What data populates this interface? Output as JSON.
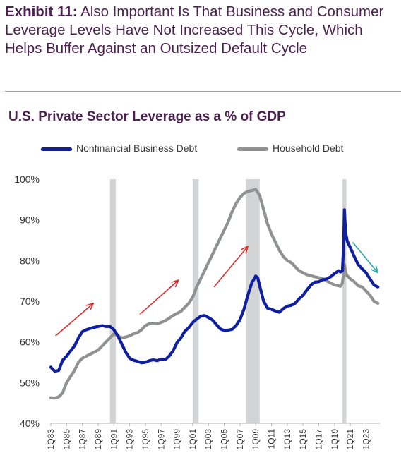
{
  "header": {
    "exhibit_label": "Exhibit 11:",
    "exhibit_text": "Also Important Is That Business and Consumer Leverage Levels Have Not Increased This Cycle, Which Helps Buffer Against an Outsized Default Cycle"
  },
  "chart_data": {
    "type": "line",
    "title": "U.S. Private Sector Leverage as a % of GDP",
    "xlabel": "",
    "ylabel": "",
    "ylim": [
      40,
      100
    ],
    "xlim": [
      1983.0,
      2024.75
    ],
    "y_ticks": [
      "40%",
      "50%",
      "60%",
      "70%",
      "80%",
      "90%",
      "100%"
    ],
    "x_ticks": [
      "1Q83",
      "1Q85",
      "1Q87",
      "1Q89",
      "1Q91",
      "1Q93",
      "1Q95",
      "1Q97",
      "1Q99",
      "1Q01",
      "1Q03",
      "1Q05",
      "1Q07",
      "1Q09",
      "1Q11",
      "1Q13",
      "1Q15",
      "1Q17",
      "1Q19",
      "1Q21",
      "1Q23"
    ],
    "legend_position": "top",
    "grid": false,
    "recessions": [
      [
        1990.5,
        1991.25
      ],
      [
        2001.0,
        2001.75
      ],
      [
        2007.75,
        2009.5
      ],
      [
        2020.0,
        2020.5
      ]
    ],
    "series": [
      {
        "name": "Nonfinancial Business Debt",
        "color": "#0f1f9e",
        "points": [
          [
            1983.0,
            53.8
          ],
          [
            1983.5,
            52.8
          ],
          [
            1984.0,
            53.0
          ],
          [
            1984.5,
            55.5
          ],
          [
            1985.0,
            56.5
          ],
          [
            1985.5,
            57.8
          ],
          [
            1986.0,
            59.0
          ],
          [
            1986.5,
            61.0
          ],
          [
            1987.0,
            62.5
          ],
          [
            1987.5,
            63.0
          ],
          [
            1988.0,
            63.3
          ],
          [
            1988.5,
            63.6
          ],
          [
            1989.0,
            63.8
          ],
          [
            1989.5,
            64.0
          ],
          [
            1990.0,
            63.8
          ],
          [
            1990.5,
            63.8
          ],
          [
            1991.0,
            63.0
          ],
          [
            1991.5,
            61.5
          ],
          [
            1992.0,
            59.5
          ],
          [
            1992.5,
            57.5
          ],
          [
            1993.0,
            56.0
          ],
          [
            1993.5,
            55.5
          ],
          [
            1994.0,
            55.2
          ],
          [
            1994.5,
            54.9
          ],
          [
            1995.0,
            55.0
          ],
          [
            1995.5,
            55.4
          ],
          [
            1996.0,
            55.6
          ],
          [
            1996.5,
            55.4
          ],
          [
            1997.0,
            55.8
          ],
          [
            1997.5,
            55.6
          ],
          [
            1998.0,
            56.5
          ],
          [
            1998.5,
            57.8
          ],
          [
            1999.0,
            59.8
          ],
          [
            1999.5,
            61.0
          ],
          [
            2000.0,
            62.6
          ],
          [
            2000.5,
            63.5
          ],
          [
            2001.0,
            64.8
          ],
          [
            2001.5,
            65.6
          ],
          [
            2002.0,
            66.3
          ],
          [
            2002.5,
            66.5
          ],
          [
            2003.0,
            66.0
          ],
          [
            2003.5,
            65.4
          ],
          [
            2004.0,
            64.3
          ],
          [
            2004.5,
            63.2
          ],
          [
            2005.0,
            62.8
          ],
          [
            2005.5,
            62.9
          ],
          [
            2006.0,
            63.1
          ],
          [
            2006.5,
            64.0
          ],
          [
            2007.0,
            65.5
          ],
          [
            2007.5,
            68.0
          ],
          [
            2008.0,
            71.5
          ],
          [
            2008.5,
            74.5
          ],
          [
            2009.0,
            76.2
          ],
          [
            2009.25,
            75.8
          ],
          [
            2009.5,
            73.8
          ],
          [
            2010.0,
            70.0
          ],
          [
            2010.5,
            68.3
          ],
          [
            2011.0,
            68.0
          ],
          [
            2011.5,
            67.6
          ],
          [
            2012.0,
            67.3
          ],
          [
            2012.5,
            68.2
          ],
          [
            2013.0,
            68.8
          ],
          [
            2013.5,
            69.0
          ],
          [
            2014.0,
            69.5
          ],
          [
            2014.5,
            70.6
          ],
          [
            2015.0,
            71.5
          ],
          [
            2015.5,
            72.8
          ],
          [
            2016.0,
            74.0
          ],
          [
            2016.5,
            74.7
          ],
          [
            2017.0,
            74.8
          ],
          [
            2017.5,
            75.3
          ],
          [
            2018.0,
            75.5
          ],
          [
            2018.5,
            76.0
          ],
          [
            2019.0,
            76.8
          ],
          [
            2019.5,
            77.5
          ],
          [
            2019.75,
            77.2
          ],
          [
            2020.0,
            77.5
          ],
          [
            2020.15,
            84.0
          ],
          [
            2020.25,
            92.5
          ],
          [
            2020.4,
            87.0
          ],
          [
            2020.6,
            84.8
          ],
          [
            2021.0,
            83.2
          ],
          [
            2021.5,
            81.0
          ],
          [
            2022.0,
            79.0
          ],
          [
            2022.5,
            78.0
          ],
          [
            2023.0,
            77.0
          ],
          [
            2023.5,
            75.5
          ],
          [
            2024.0,
            74.0
          ],
          [
            2024.5,
            73.5
          ]
        ]
      },
      {
        "name": "Household Debt",
        "color": "#8f9192",
        "points": [
          [
            1983.0,
            46.3
          ],
          [
            1983.5,
            46.2
          ],
          [
            1984.0,
            46.5
          ],
          [
            1984.5,
            47.5
          ],
          [
            1985.0,
            50.0
          ],
          [
            1985.5,
            51.5
          ],
          [
            1986.0,
            53.0
          ],
          [
            1986.5,
            55.0
          ],
          [
            1987.0,
            56.0
          ],
          [
            1987.5,
            56.5
          ],
          [
            1988.0,
            57.0
          ],
          [
            1988.5,
            57.5
          ],
          [
            1989.0,
            58.0
          ],
          [
            1989.5,
            59.0
          ],
          [
            1990.0,
            60.0
          ],
          [
            1990.5,
            61.0
          ],
          [
            1991.0,
            62.0
          ],
          [
            1991.5,
            61.5
          ],
          [
            1992.0,
            61.0
          ],
          [
            1992.5,
            61.2
          ],
          [
            1993.0,
            61.5
          ],
          [
            1993.5,
            62.0
          ],
          [
            1994.0,
            62.3
          ],
          [
            1994.5,
            63.0
          ],
          [
            1995.0,
            64.0
          ],
          [
            1995.5,
            64.5
          ],
          [
            1996.0,
            64.6
          ],
          [
            1996.5,
            64.5
          ],
          [
            1997.0,
            64.8
          ],
          [
            1997.5,
            65.2
          ],
          [
            1998.0,
            65.8
          ],
          [
            1998.5,
            66.5
          ],
          [
            1999.0,
            67.0
          ],
          [
            1999.5,
            67.5
          ],
          [
            2000.0,
            68.5
          ],
          [
            2000.5,
            69.5
          ],
          [
            2001.0,
            71.0
          ],
          [
            2001.5,
            73.5
          ],
          [
            2002.0,
            75.5
          ],
          [
            2002.5,
            77.5
          ],
          [
            2003.0,
            79.5
          ],
          [
            2003.5,
            81.5
          ],
          [
            2004.0,
            83.5
          ],
          [
            2004.5,
            85.5
          ],
          [
            2005.0,
            87.5
          ],
          [
            2005.5,
            89.5
          ],
          [
            2006.0,
            92.0
          ],
          [
            2006.5,
            94.0
          ],
          [
            2007.0,
            95.5
          ],
          [
            2007.5,
            96.5
          ],
          [
            2008.0,
            97.0
          ],
          [
            2008.5,
            97.2
          ],
          [
            2009.0,
            97.5
          ],
          [
            2009.5,
            96.0
          ],
          [
            2010.0,
            92.5
          ],
          [
            2010.5,
            89.0
          ],
          [
            2011.0,
            86.5
          ],
          [
            2011.5,
            84.5
          ],
          [
            2012.0,
            82.5
          ],
          [
            2012.5,
            81.0
          ],
          [
            2013.0,
            80.0
          ],
          [
            2013.5,
            79.5
          ],
          [
            2014.0,
            78.5
          ],
          [
            2014.5,
            77.5
          ],
          [
            2015.0,
            77.0
          ],
          [
            2015.5,
            76.5
          ],
          [
            2016.0,
            76.3
          ],
          [
            2016.5,
            76.0
          ],
          [
            2017.0,
            75.8
          ],
          [
            2017.5,
            75.5
          ],
          [
            2018.0,
            75.0
          ],
          [
            2018.5,
            74.5
          ],
          [
            2019.0,
            74.0
          ],
          [
            2019.5,
            73.8
          ],
          [
            2019.75,
            73.7
          ],
          [
            2020.0,
            74.5
          ],
          [
            2020.25,
            79.0
          ],
          [
            2020.5,
            76.5
          ],
          [
            2021.0,
            75.5
          ],
          [
            2021.5,
            74.8
          ],
          [
            2022.0,
            73.8
          ],
          [
            2022.5,
            73.5
          ],
          [
            2023.0,
            72.5
          ],
          [
            2023.5,
            71.5
          ],
          [
            2024.0,
            70.0
          ],
          [
            2024.5,
            69.5
          ]
        ]
      }
    ],
    "trend_arrows": [
      {
        "color": "#e02a2a",
        "from": [
          1983.6,
          61.5
        ],
        "to": [
          1988.4,
          69.5
        ]
      },
      {
        "color": "#e02a2a",
        "from": [
          1994.3,
          66.8
        ],
        "to": [
          1999.2,
          75.2
        ]
      },
      {
        "color": "#e02a2a",
        "from": [
          2003.7,
          73.5
        ],
        "to": [
          2008.0,
          83.5
        ]
      },
      {
        "color": "#2aa7b0",
        "from": [
          2021.3,
          84.5
        ],
        "to": [
          2024.5,
          77.0
        ]
      }
    ]
  }
}
